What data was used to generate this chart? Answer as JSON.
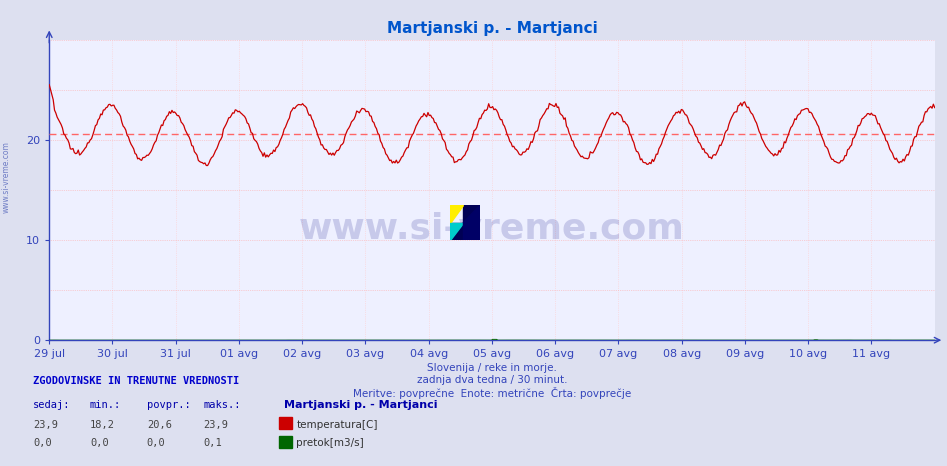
{
  "title": "Martjanski p. - Martjanci",
  "title_color": "#0055cc",
  "bg_color": "#dde0f0",
  "plot_bg_color": "#eef0ff",
  "grid_color_h": "#ffaaaa",
  "grid_color_v": "#ffcccc",
  "axis_color": "#3344bb",
  "tick_color": "#3344bb",
  "xlabel_lines": [
    "Slovenija / reke in morje.",
    "zadnja dva tedna / 30 minut.",
    "Meritve: povprečne  Enote: metrične  Črta: povprečje"
  ],
  "x_tick_labels": [
    "29 jul",
    "30 jul",
    "31 jul",
    "01 avg",
    "02 avg",
    "03 avg",
    "04 avg",
    "05 avg",
    "06 avg",
    "07 avg",
    "08 avg",
    "09 avg",
    "10 avg",
    "11 avg"
  ],
  "yticks": [
    0,
    10,
    20
  ],
  "ymax": 30,
  "ymin": 0,
  "avg_line_value": 20.6,
  "avg_line_color": "#ff6666",
  "temp_line_color": "#cc0000",
  "flow_line_color": "#006600",
  "watermark_text": "www.si-vreme.com",
  "watermark_color": "#1a1a8c",
  "watermark_alpha": 0.18,
  "sidebar_text": "www.si-vreme.com",
  "sidebar_color": "#5566bb",
  "footer_header": "ZGODOVINSKE IN TRENUTNE VREDNOSTI",
  "footer_header_color": "#0000cc",
  "footer_label_color": "#0000aa",
  "footer_value_color": "#333333",
  "footer_labels": [
    "sedaj:",
    "min.:",
    "povpr.:",
    "maks.:"
  ],
  "footer_temp_values": [
    "23,9",
    "18,2",
    "20,6",
    "23,9"
  ],
  "footer_flow_values": [
    "0,0",
    "0,0",
    "0,0",
    "0,1"
  ],
  "footer_station": "Martjanski p. - Martjanci",
  "footer_temp_label": "temperatura[C]",
  "footer_flow_label": "pretok[m3/s]",
  "temp_color_box": "#cc0000",
  "flow_color_box": "#006600",
  "n_points": 672,
  "n_days": 14
}
